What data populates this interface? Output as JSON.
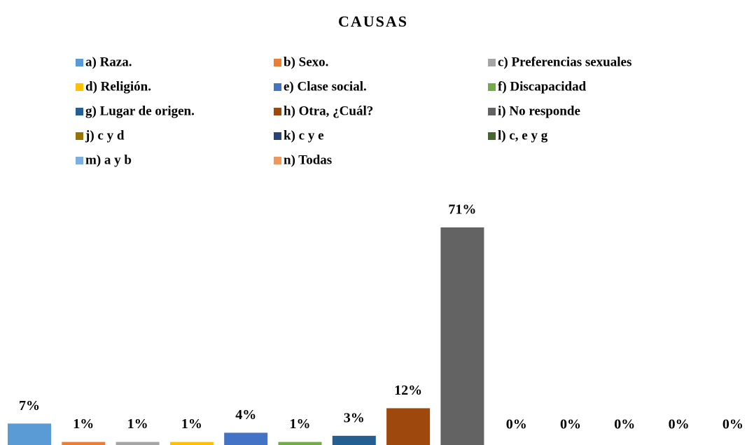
{
  "chart_data": {
    "type": "bar",
    "title": "CAUSAS",
    "series": [
      {
        "name": "a) Raza.",
        "color": "#5b9bd5",
        "values": [
          7
        ],
        "value_labels": [
          "7%"
        ]
      },
      {
        "name": "b) Sexo.",
        "color": "#ed7d31",
        "values": [
          1
        ],
        "value_labels": [
          "1%"
        ]
      },
      {
        "name": "c) Preferencias sexuales",
        "color": "#a5a5a5",
        "values": [
          1
        ],
        "value_labels": [
          "1%"
        ]
      },
      {
        "name": "d) Religión.",
        "color": "#ffc000",
        "values": [
          1
        ],
        "value_labels": [
          "1%"
        ]
      },
      {
        "name": "e) Clase social.",
        "color": "#4472c4",
        "values": [
          4
        ],
        "value_labels": [
          "4%"
        ]
      },
      {
        "name": "f) Discapacidad",
        "color": "#70ad47",
        "values": [
          1
        ],
        "value_labels": [
          "1%"
        ]
      },
      {
        "name": "g) Lugar de origen.",
        "color": "#255e91",
        "values": [
          3
        ],
        "value_labels": [
          "3%"
        ]
      },
      {
        "name": "h) Otra, ¿Cuál?",
        "color": "#9e480e",
        "values": [
          12
        ],
        "value_labels": [
          "12%"
        ]
      },
      {
        "name": "i) No responde",
        "color": "#636363",
        "values": [
          71
        ],
        "value_labels": [
          "71%"
        ]
      },
      {
        "name": "j) c y d",
        "color": "#997300",
        "values": [
          0
        ],
        "value_labels": [
          "0%"
        ]
      },
      {
        "name": "k) c y e",
        "color": "#264478",
        "values": [
          0
        ],
        "value_labels": [
          "0%"
        ]
      },
      {
        "name": "l) c, e y g",
        "color": "#43682b",
        "values": [
          0
        ],
        "value_labels": [
          "0%"
        ]
      },
      {
        "name": "m) a y b",
        "color": "#7cafdd",
        "values": [
          0
        ],
        "value_labels": [
          "0%"
        ]
      },
      {
        "name": "n) Todas",
        "color": "#f1975a",
        "values": [
          0
        ],
        "value_labels": [
          "0%"
        ]
      }
    ]
  }
}
